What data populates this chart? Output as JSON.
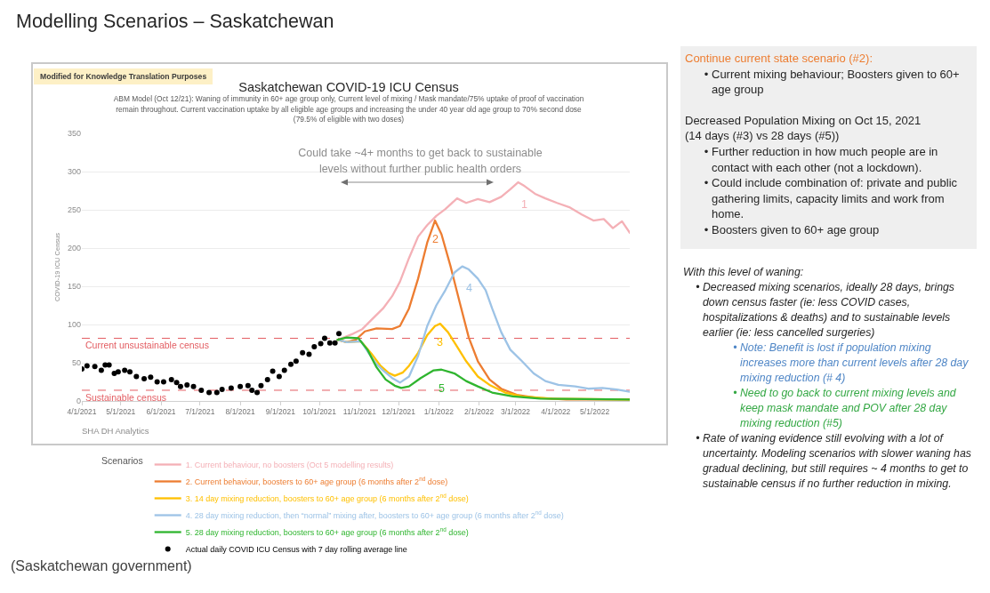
{
  "chart_data": {
    "type": "line",
    "title": "Saskatchewan COVID-19 ICU Census",
    "subtitle": "ABM Model (Oct 12/21): Waning of immunity in 60+ age group only, Current level of mixing / Mask mandate/75% uptake of proof of vaccination remain throughout.  Current vaccination uptake by all eligible age groups and increasing the under 40 year old age group to 70% second dose (79.5% of eligible with two doses)",
    "ylabel": "COVID-19 ICU Census",
    "legend_title": "Scenarios",
    "legend": "bottom",
    "grid": "y",
    "xlim": [
      "2021-04-01",
      "2022-05-28"
    ],
    "xticks": [
      {
        "value": "2021-04-01",
        "label": "4/1/2021"
      },
      {
        "value": "2021-05-01",
        "label": "5/1/2021"
      },
      {
        "value": "2021-06-01",
        "label": "6/1/2021"
      },
      {
        "value": "2021-07-01",
        "label": "7/1/2021"
      },
      {
        "value": "2021-08-01",
        "label": "8/1/2021"
      },
      {
        "value": "2021-09-01",
        "label": "9/1/2021"
      },
      {
        "value": "2021-10-01",
        "label": "10/1/2021"
      },
      {
        "value": "2021-11-01",
        "label": "11/1/2021"
      },
      {
        "value": "2021-12-01",
        "label": "12/1/2021"
      },
      {
        "value": "2022-01-01",
        "label": "1/1/2022"
      },
      {
        "value": "2022-02-01",
        "label": "2/1/2022"
      },
      {
        "value": "2022-03-01",
        "label": "3/1/2022"
      },
      {
        "value": "2022-04-01",
        "label": "4/1/2022"
      },
      {
        "value": "2022-05-01",
        "label": "5/1/2022"
      }
    ],
    "ylim": [
      0,
      350
    ],
    "yticks": [
      0,
      50,
      100,
      150,
      200,
      250,
      300,
      350
    ],
    "series": [
      {
        "name": "1. Current behaviour, no boosters (Oct 5 modelling results)",
        "color": "#f4b0b6",
        "x": [
          "2021-10-15",
          "2021-10-27",
          "2021-11-03",
          "2021-11-10",
          "2021-11-19",
          "2021-11-26",
          "2021-12-02",
          "2021-12-09",
          "2021-12-16",
          "2021-12-23",
          "2021-12-30",
          "2022-01-06",
          "2022-01-15",
          "2022-01-22",
          "2022-01-31",
          "2022-02-09",
          "2022-02-18",
          "2022-02-25",
          "2022-03-03",
          "2022-03-08",
          "2022-03-16",
          "2022-03-24",
          "2022-04-02",
          "2022-04-12",
          "2022-04-21",
          "2022-04-30",
          "2022-05-08",
          "2022-05-15",
          "2022-05-22",
          "2022-05-28"
        ],
        "values": [
          80,
          88,
          94,
          106,
          121,
          137,
          156,
          187,
          215,
          230,
          242,
          251,
          265,
          259,
          264,
          260,
          267,
          277,
          286,
          281,
          271,
          265,
          259,
          253,
          244,
          236,
          238,
          226,
          235,
          220
        ]
      },
      {
        "name": "2. Current behaviour, boosters to 60+ age group (6 months after 2$^{nd}$ dose)",
        "color": "#ed7d31",
        "x": [
          "2021-10-15",
          "2021-10-22",
          "2021-10-29",
          "2021-11-05",
          "2021-11-14",
          "2021-11-26",
          "2021-12-02",
          "2021-12-09",
          "2021-12-16",
          "2021-12-23",
          "2021-12-29",
          "2022-01-03",
          "2022-01-10",
          "2022-01-17",
          "2022-01-24",
          "2022-01-31",
          "2022-02-09",
          "2022-02-18",
          "2022-03-02",
          "2022-03-18",
          "2022-04-09",
          "2022-05-28"
        ],
        "values": [
          80,
          77,
          80,
          91,
          95,
          94,
          98,
          121,
          160,
          207,
          236,
          218,
          176,
          129,
          83,
          52,
          28,
          16,
          8,
          4,
          2,
          2
        ]
      },
      {
        "name": "3. 14 day mixing reduction, boosters to 60+ age group (6 months after 2$^{nd}$ dose)",
        "color": "#ffc000",
        "x": [
          "2021-10-15",
          "2021-10-22",
          "2021-11-02",
          "2021-11-10",
          "2021-11-17",
          "2021-11-23",
          "2021-11-28",
          "2021-12-04",
          "2021-12-09",
          "2021-12-16",
          "2021-12-23",
          "2021-12-29",
          "2022-01-02",
          "2022-01-08",
          "2022-01-15",
          "2022-01-22",
          "2022-01-31",
          "2022-02-09",
          "2022-02-21",
          "2022-03-06",
          "2022-03-29",
          "2022-05-28"
        ],
        "values": [
          80,
          77,
          78,
          62,
          46,
          37,
          33,
          37,
          46,
          63,
          86,
          98,
          101,
          90,
          71,
          52,
          32,
          21,
          11,
          6,
          3,
          2
        ]
      },
      {
        "name": "4. 28 day mixing reduction, then “normal” mixing after, boosters to 60+ age group (6 months after 2$^{nd}$ dose)",
        "color": "#9dc3e6",
        "x": [
          "2021-10-15",
          "2021-10-22",
          "2021-11-02",
          "2021-11-07",
          "2021-11-13",
          "2021-11-19",
          "2021-11-26",
          "2021-12-02",
          "2021-12-09",
          "2021-12-16",
          "2021-12-23",
          "2021-12-30",
          "2022-01-06",
          "2022-01-13",
          "2022-01-19",
          "2022-01-24",
          "2022-01-31",
          "2022-02-06",
          "2022-02-11",
          "2022-02-18",
          "2022-02-25",
          "2022-03-06",
          "2022-03-15",
          "2022-03-24",
          "2022-04-03",
          "2022-04-16",
          "2022-04-26",
          "2022-05-07",
          "2022-05-18",
          "2022-05-28"
        ],
        "values": [
          80,
          77,
          78,
          65,
          50,
          40,
          30,
          24,
          32,
          59,
          98,
          125,
          145,
          168,
          176,
          172,
          160,
          145,
          121,
          90,
          67,
          52,
          36,
          26,
          21,
          19,
          16,
          17,
          15,
          12
        ]
      },
      {
        "name": "5. 28 day mixing reduction, boosters to 60+ age group (6 months after 2$^{nd}$ dose)",
        "color": "#2fb52f",
        "x": [
          "2021-10-15",
          "2021-10-22",
          "2021-10-31",
          "2021-11-07",
          "2021-11-14",
          "2021-11-21",
          "2021-11-28",
          "2021-12-03",
          "2021-12-09",
          "2021-12-18",
          "2021-12-28",
          "2022-01-03",
          "2022-01-13",
          "2022-01-22",
          "2022-01-31",
          "2022-02-11",
          "2022-02-27",
          "2022-03-20",
          "2022-05-28"
        ],
        "values": [
          80,
          83,
          82,
          67,
          44,
          28,
          20,
          17,
          19,
          30,
          40,
          41,
          36,
          26,
          19,
          11,
          6,
          3,
          2
        ]
      },
      {
        "name": "Actual daily COVID ICU Census with 7 day rolling average line",
        "type": "scatter",
        "marker": "circle",
        "color": "#000000",
        "x": [
          "2021-04-01",
          "2021-04-05",
          "2021-04-11",
          "2021-04-16",
          "2021-04-19",
          "2021-04-22",
          "2021-04-26",
          "2021-04-29",
          "2021-05-04",
          "2021-05-08",
          "2021-05-13",
          "2021-05-19",
          "2021-05-24",
          "2021-05-29",
          "2021-06-03",
          "2021-06-09",
          "2021-06-13",
          "2021-06-16",
          "2021-06-21",
          "2021-06-26",
          "2021-07-02",
          "2021-07-08",
          "2021-07-14",
          "2021-07-18",
          "2021-07-25",
          "2021-08-01",
          "2021-08-07",
          "2021-08-10",
          "2021-08-14",
          "2021-08-17",
          "2021-08-22",
          "2021-08-26",
          "2021-08-31",
          "2021-09-04",
          "2021-09-09",
          "2021-09-13",
          "2021-09-18",
          "2021-09-23",
          "2021-09-27",
          "2021-10-02",
          "2021-10-05",
          "2021-10-09",
          "2021-10-13",
          "2021-10-16"
        ],
        "values": [
          42,
          46,
          45,
          40,
          47,
          47,
          36,
          38,
          40,
          38,
          32,
          29,
          31,
          25,
          25,
          28,
          24,
          19,
          21,
          19,
          14,
          11,
          11,
          15,
          17,
          19,
          20,
          14,
          11,
          20,
          28,
          39,
          32,
          40,
          48,
          52,
          63,
          61,
          71,
          75,
          82,
          76,
          76,
          88
        ]
      }
    ],
    "ref_lines": [
      {
        "axis": "y",
        "value": 82,
        "label": "Current unsustainable census",
        "color": "#e35d62",
        "line_style": "dashed"
      },
      {
        "axis": "y",
        "value": 14,
        "label": "Sustainable census",
        "color": "#e35d62",
        "line_style": "dashed"
      }
    ],
    "annotations": [
      "Modelling Scenarios – Saskatchewan",
      "Modified for Knowledge Translation Purposes",
      "Could take ~4+ months to get back to sustainable levels without further public health orders",
      "SHA DH Analytics",
      "Continue current state scenario (#2):",
      "• Current mixing behaviour; Boosters given to 60+ age group",
      "Decreased Population Mixing on Oct 15, 2021",
      "(14 days (#3) vs 28 days (#5))",
      "• Further reduction in how much people are in contact with each other (not a lockdown).",
      "• Could include combination of: private and public gathering limits, capacity limits and work from home.",
      "• Boosters given to 60+ age group",
      "With this level of waning:",
      "• Decreased mixing scenarios, ideally 28 days, brings down census faster (ie: less COVID cases, hospitalizations & deaths) and to sustainable levels earlier (ie: less cancelled surgeries)",
      "• Note: Benefit is lost if population mixing increases more than current levels after 28 day mixing reduction (# 4)",
      "• Need to go back to current mixing levels and keep mask mandate and POV after 28 day mixing reduction (#5)",
      "• Rate of waning evidence still evolving with a lot of uncertainty.  Modeling scenarios with slower waning has gradual declining, but still requires ~ 4 months to get to sustainable census if no further reduction in mixing.",
      "(Saskatchewan government)",
      {
        "text": "1",
        "x": "2022-03-08",
        "y": 281
      },
      {
        "text": "2",
        "x": "2021-12-29",
        "y": 236
      },
      {
        "text": "3",
        "x": "2022-01-02",
        "y": 101
      },
      {
        "text": "4",
        "x": "2022-01-24",
        "y": 172
      },
      {
        "text": "5",
        "x": "2022-01-03",
        "y": 41
      }
    ]
  }
}
